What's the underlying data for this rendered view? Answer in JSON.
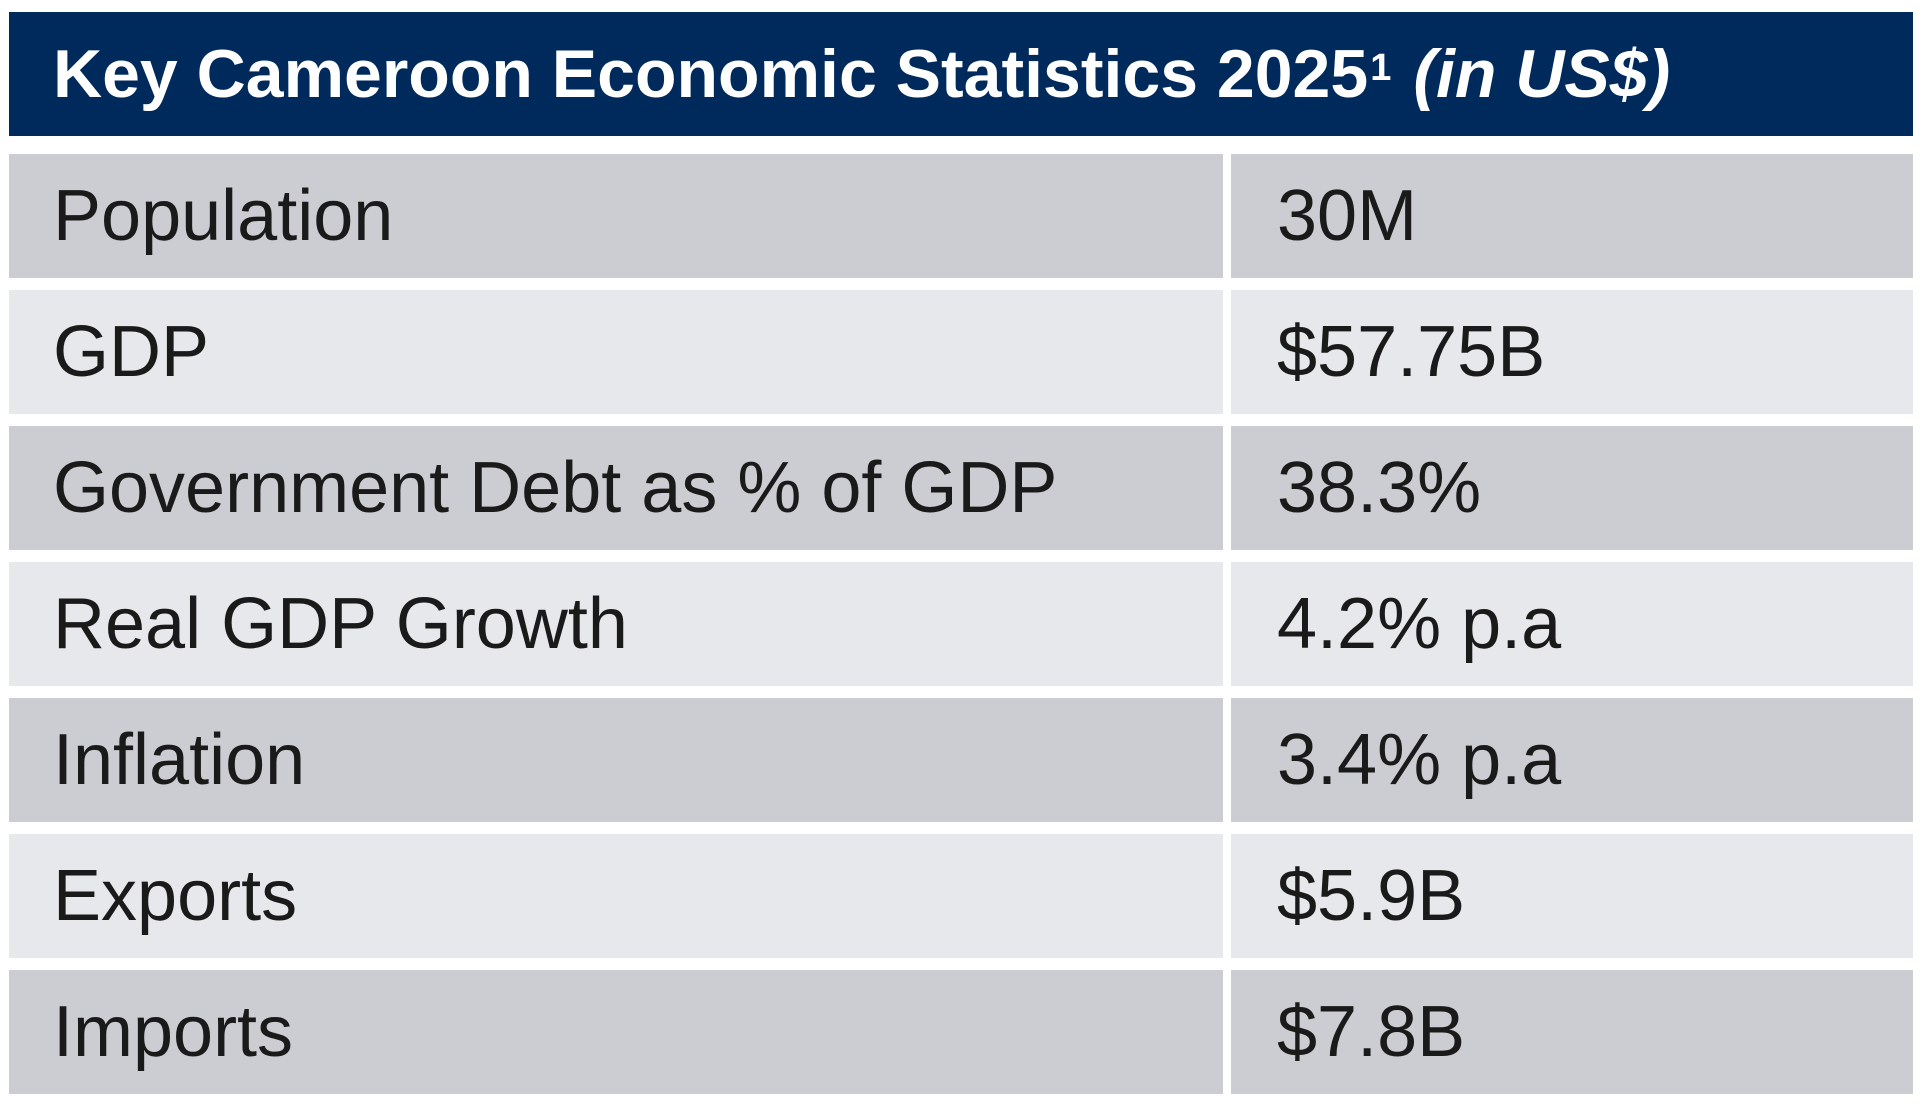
{
  "table": {
    "title": "Key Cameroon Economic Statistics 2025",
    "footnote_marker": "1",
    "unit": "(in US$)",
    "rows": [
      {
        "label": "Population",
        "value": "30M"
      },
      {
        "label": "GDP",
        "value": "$57.75B"
      },
      {
        "label": "Government Debt as % of GDP",
        "value": "38.3%"
      },
      {
        "label": "Real GDP Growth",
        "value": "4.2% p.a"
      },
      {
        "label": "Inflation",
        "value": "3.4% p.a"
      },
      {
        "label": "Exports",
        "value": "$5.9B"
      },
      {
        "label": "Imports",
        "value": "$7.8B"
      }
    ],
    "colors": {
      "header_bg": "#002a5c",
      "row_dark": "#cccdd2",
      "row_light": "#e7e8eb"
    }
  }
}
